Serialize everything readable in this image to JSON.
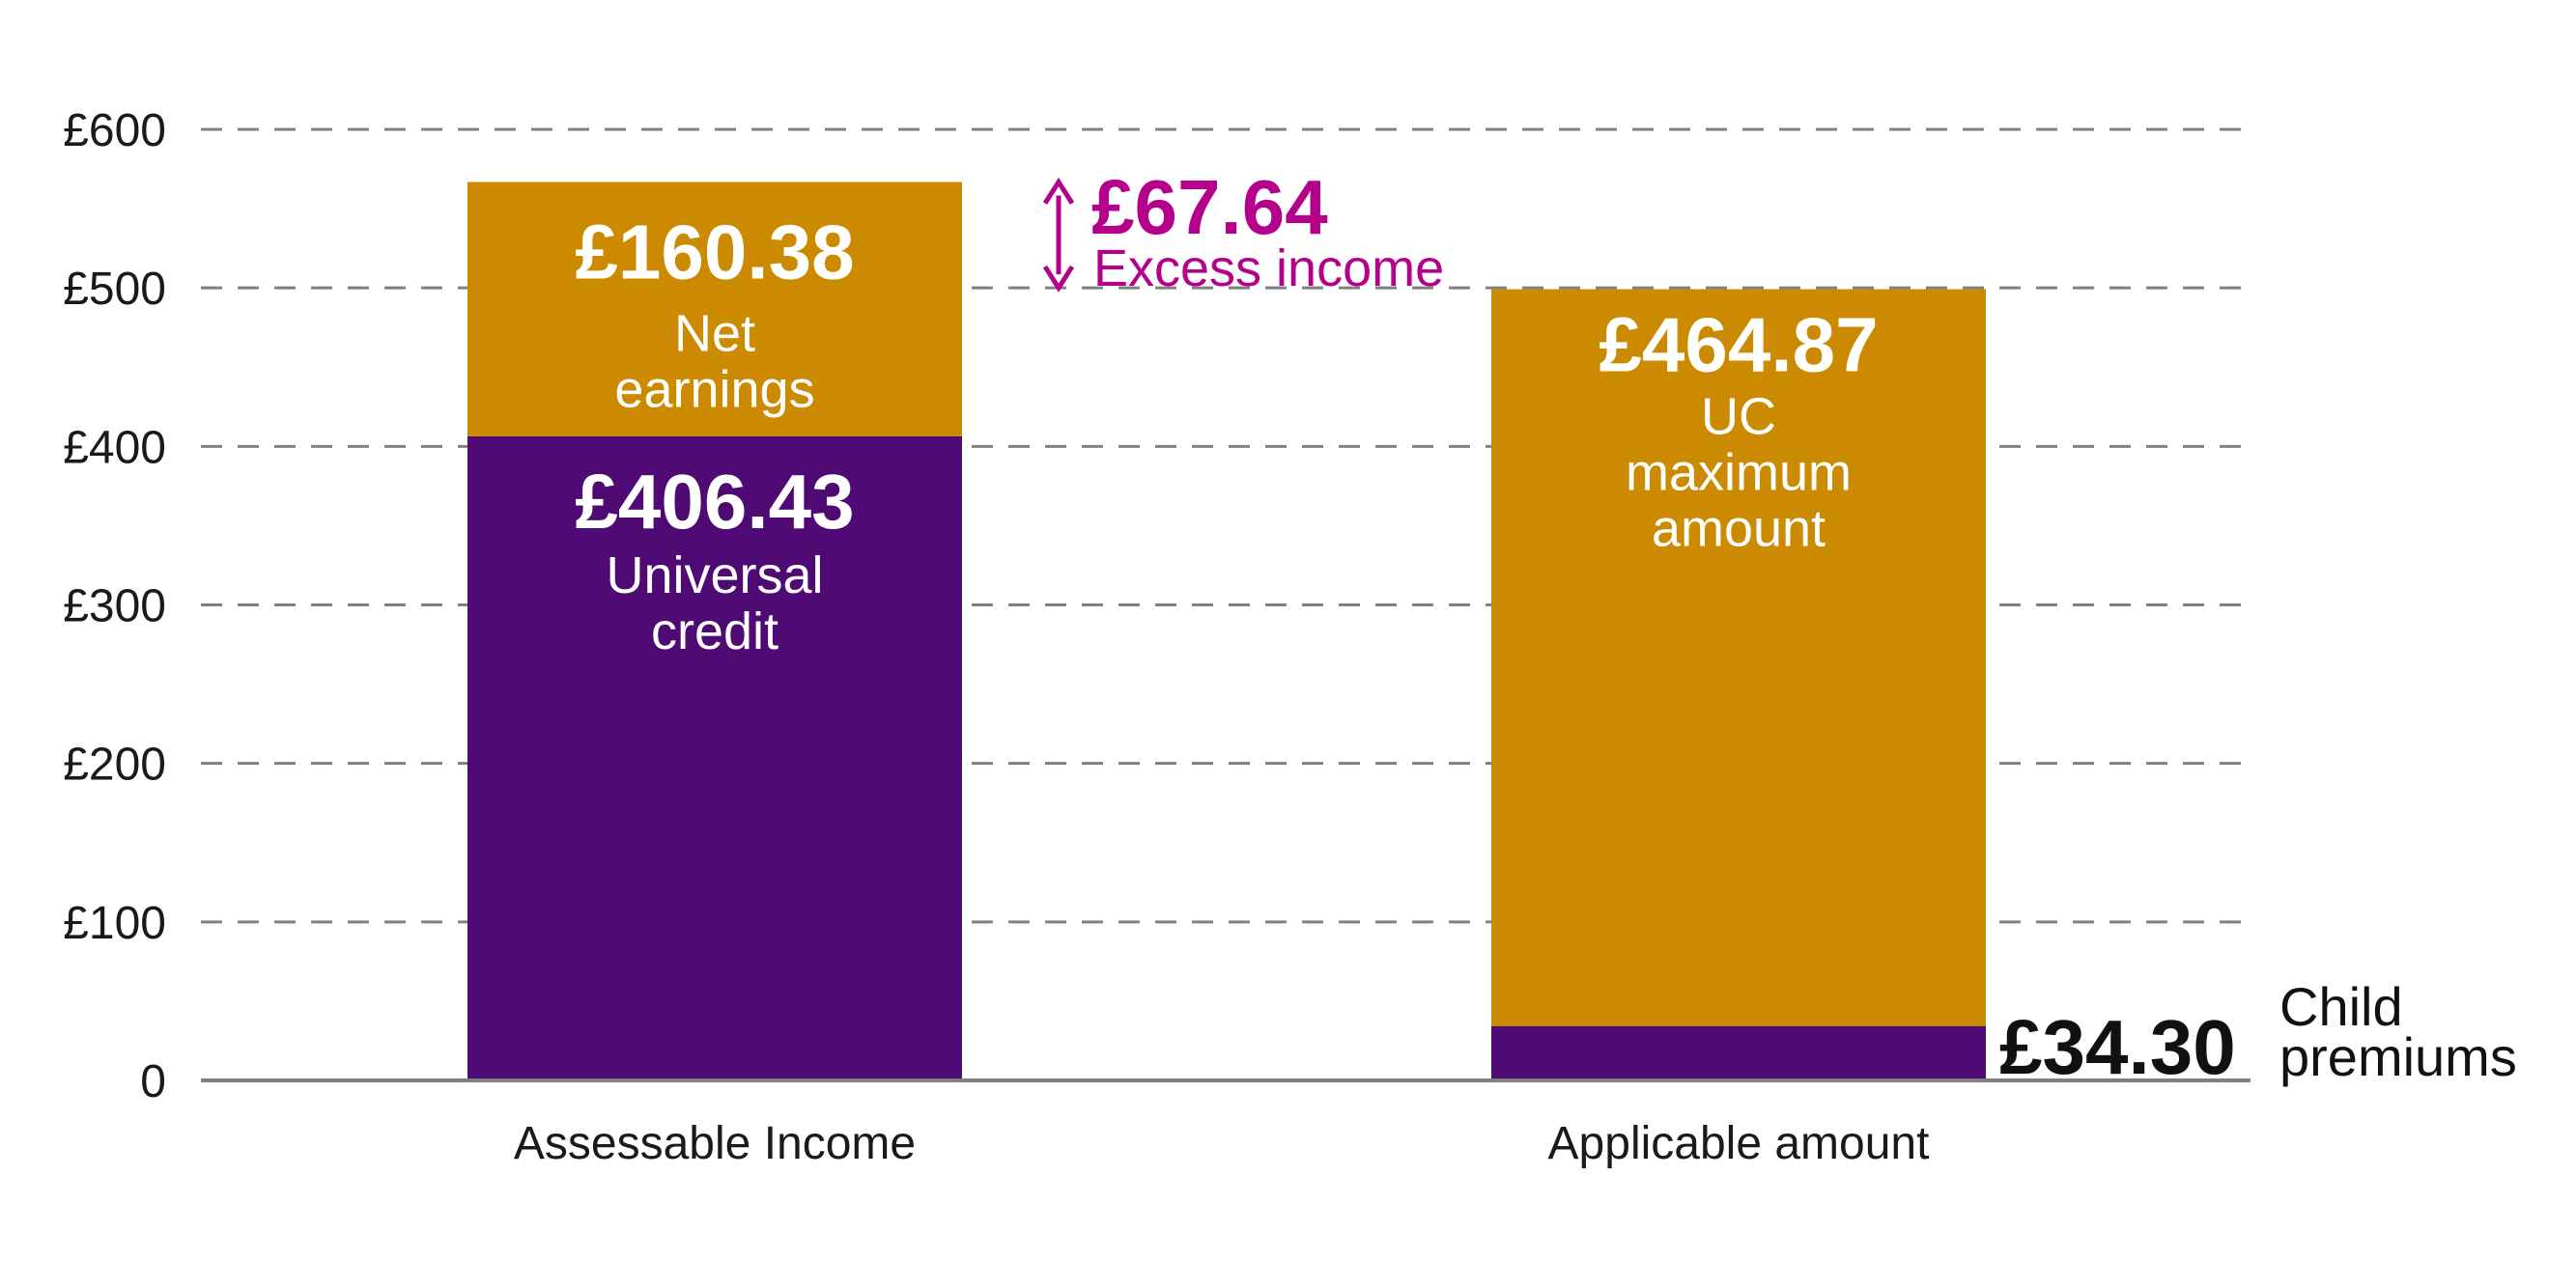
{
  "chart_data": {
    "type": "bar",
    "stacked": true,
    "categories": [
      "Assessable Income",
      "Applicable amount"
    ],
    "series": [
      {
        "values": [
          406.43,
          34.3
        ],
        "color": "#4f0a73",
        "value_labels": [
          "£406.43",
          "£34.30"
        ],
        "text_labels": [
          "Universal credit",
          "Child premiums"
        ]
      },
      {
        "values": [
          160.38,
          464.87
        ],
        "color": "#cc8a00",
        "value_labels": [
          "£160.38",
          "£464.87"
        ],
        "text_labels": [
          "Net earnings",
          "UC maximum amount"
        ]
      }
    ],
    "ylim": [
      0,
      600
    ],
    "yticks": [
      0,
      100,
      200,
      300,
      400,
      500,
      600
    ],
    "ytick_labels": [
      "0",
      "£100",
      "£200",
      "£300",
      "£400",
      "£500",
      "£600"
    ],
    "grid": true,
    "grid_style": "dashed",
    "title": "",
    "xlabel": "",
    "ylabel": "",
    "annotation": {
      "value": 67.64,
      "value_label": "£67.64",
      "label": "Excess income",
      "from": 500,
      "to": 566.81,
      "color": "#b5008c"
    }
  },
  "text_lines": {
    "net_earnings": [
      "Net",
      "earnings"
    ],
    "universal_credit": [
      "Universal",
      "credit"
    ],
    "uc_maximum_amount": [
      "UC",
      "maximum",
      "amount"
    ],
    "child_premiums": [
      "Child",
      "premiums"
    ]
  },
  "colors": {
    "gridline": "#808080",
    "axis": "#808080",
    "text": "#1a1a1a"
  }
}
